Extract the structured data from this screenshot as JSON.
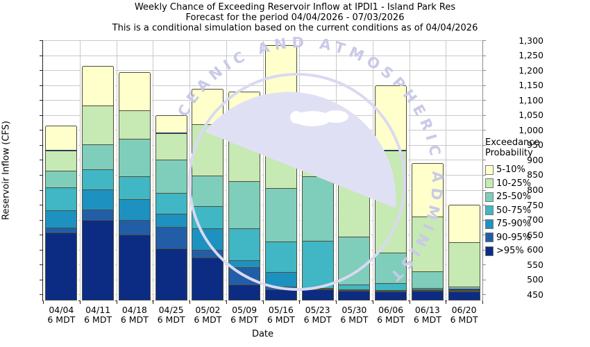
{
  "title": {
    "line1": "Weekly Chance of Exceeding Reservoir Inflow at IPDI1 - Island Park Res",
    "line2": "Forecast for the period 04/04/2026 - 07/03/2026",
    "line3": "This is a conditional simulation based on the current conditions as of 04/04/2026"
  },
  "y_axis": {
    "label": "Reservoir Inflow (CFS)",
    "ticks": [
      "1,300",
      "1,250",
      "1,200",
      "1,150",
      "1,100",
      "1,050",
      "1,000",
      "950",
      "900",
      "850",
      "800",
      "750",
      "700",
      "650",
      "600",
      "550",
      "500",
      "450"
    ],
    "tick_values": [
      1300,
      1250,
      1200,
      1150,
      1100,
      1050,
      1000,
      950,
      900,
      850,
      800,
      750,
      700,
      650,
      600,
      550,
      500,
      450
    ]
  },
  "x_axis": {
    "label": "Date",
    "sub_label": "6 MDT",
    "categories": [
      "04/04",
      "04/11",
      "04/18",
      "04/25",
      "05/02",
      "05/09",
      "05/16",
      "05/23",
      "05/30",
      "06/06",
      "06/13",
      "06/20"
    ]
  },
  "legend": {
    "title": "Exceedance Probability",
    "items": [
      {
        "label": "5-10%",
        "color": "#ffffcc"
      },
      {
        "label": "10-25%",
        "color": "#c7e9b4"
      },
      {
        "label": "25-50%",
        "color": "#7fcdbb"
      },
      {
        "label": "50-75%",
        "color": "#41b6c4"
      },
      {
        "label": "75-90%",
        "color": "#1d91c0"
      },
      {
        "label": "90-95%",
        "color": "#225ea8"
      },
      {
        "label": ">95%",
        "color": "#0c2c84"
      }
    ]
  },
  "watermark": {
    "name": "noaa-logo-ghost",
    "arc_text": "CEANIC AND ATMOSPHERIC ADMINISTRA",
    "color": "#c9c9e8",
    "dome_color": "#e0e0f4"
  },
  "chart_data": {
    "type": "bar",
    "stacked": true,
    "title": "Weekly Chance of Exceeding Reservoir Inflow at IPDI1 - Island Park Res",
    "xlabel": "Date",
    "ylabel": "Reservoir Inflow (CFS)",
    "ylim": [
      430,
      1300
    ],
    "grid": true,
    "legend_position": "right",
    "base_value": 430,
    "categories": [
      "04/04",
      "04/11",
      "04/18",
      "04/25",
      "05/02",
      "05/09",
      "05/16",
      "05/23",
      "05/30",
      "06/06",
      "06/13",
      "06/20"
    ],
    "series_note": "values are cumulative segment tops in CFS, series listed bottom of stack to top",
    "series": [
      {
        "name": ">95%",
        "color": "#0c2c84",
        "tops": [
          655,
          697,
          648,
          601,
          571,
          481,
          464,
          464,
          460,
          458,
          460,
          458
        ]
      },
      {
        "name": "90-95%",
        "color": "#225ea8",
        "tops": [
          672,
          731,
          697,
          673,
          596,
          538,
          475,
          467,
          462,
          460,
          462,
          460
        ]
      },
      {
        "name": "75-90%",
        "color": "#1d91c0",
        "tops": [
          730,
          800,
          766,
          717,
          670,
          563,
          523,
          470,
          464,
          462,
          464,
          462
        ]
      },
      {
        "name": "50-75%",
        "color": "#41b6c4",
        "tops": [
          805,
          866,
          843,
          787,
          743,
          668,
          625,
          627,
          482,
          485,
          470,
          466
        ]
      },
      {
        "name": "25-50%",
        "color": "#7fcdbb",
        "tops": [
          861,
          950,
          968,
          899,
          845,
          827,
          803,
          843,
          641,
          588,
          525,
          474
        ]
      },
      {
        "name": "10-25%",
        "color": "#c7e9b4",
        "tops": [
          930,
          1080,
          1063,
          988,
          1017,
          1044,
          1093,
          965,
          851,
          930,
          708,
          623
        ]
      },
      {
        "name": "5-10%",
        "color": "#ffffcc",
        "tops": [
          1012,
          1213,
          1190,
          1046,
          1135,
          1125,
          1282,
          1030,
          918,
          1148,
          886,
          748
        ]
      }
    ]
  }
}
